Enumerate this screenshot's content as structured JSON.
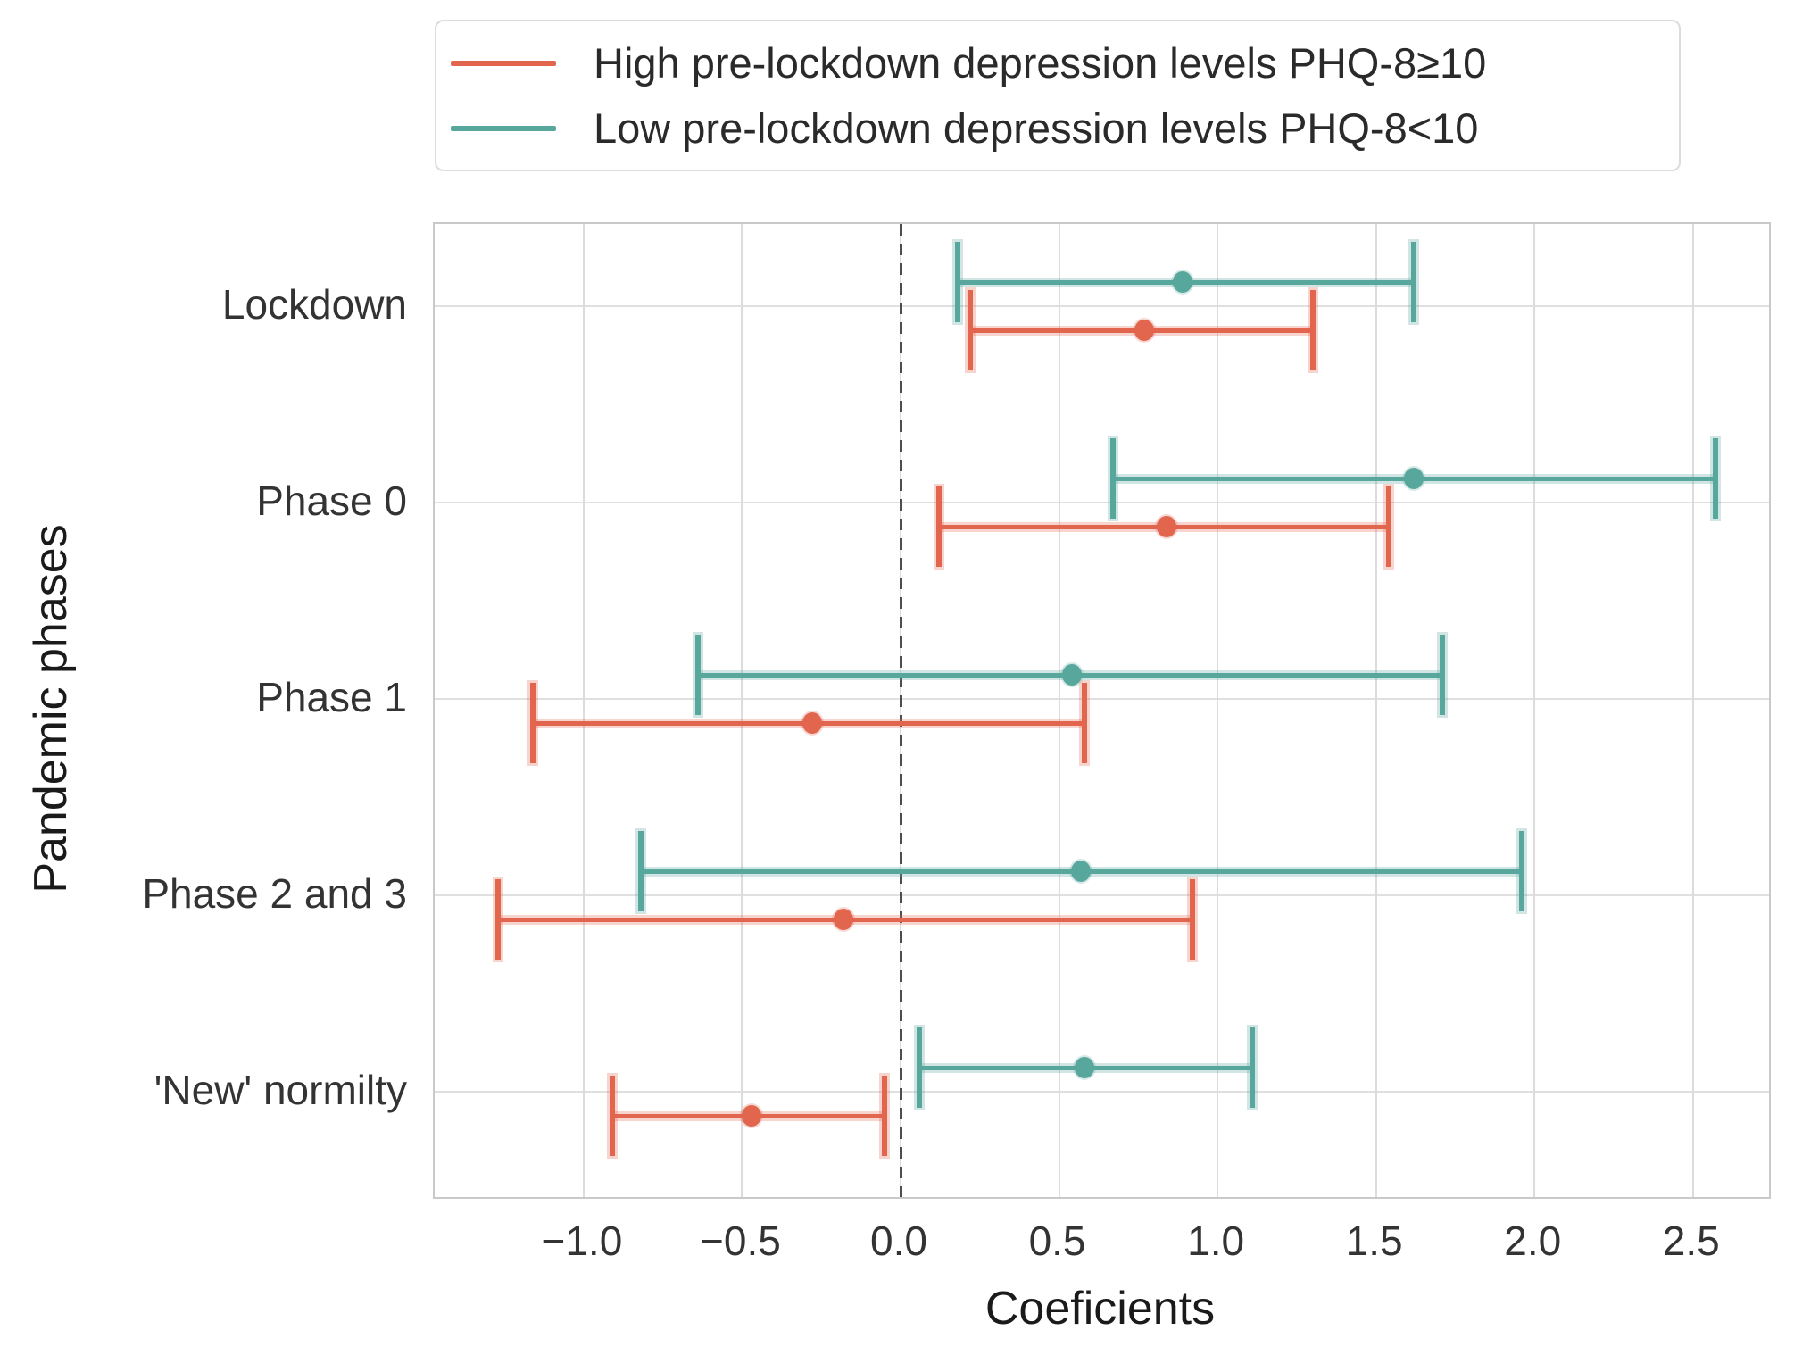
{
  "legend": {
    "items": [
      {
        "label": "High pre-lockdown depression levels PHQ-8≥10",
        "color": "#e2654e"
      },
      {
        "label": "Low pre-lockdown depression levels PHQ-8<10",
        "color": "#58a79d"
      }
    ]
  },
  "chart_data": {
    "type": "scatter",
    "subtype": "point-estimates-with-95ci-error-bars (dot-and-whisker, horizontal)",
    "title": "",
    "xlabel": "Coeficients",
    "ylabel": "Pandemic phases",
    "categories": [
      "Lockdown",
      "Phase 0",
      "Phase 1",
      "Phase 2 and 3",
      "'New' normilty"
    ],
    "xlim": [
      -1.47,
      2.74
    ],
    "x_ticks": [
      -1.0,
      -0.5,
      0.0,
      0.5,
      1.0,
      1.5,
      2.0,
      2.5
    ],
    "x_tick_labels": [
      "−1.0",
      "−0.5",
      "0.0",
      "0.5",
      "1.0",
      "1.5",
      "2.0",
      "2.5"
    ],
    "grid": true,
    "legend_position": "top, above plot, framed box",
    "zero_line": {
      "x": 0.0,
      "style": "dashed",
      "color": "#4d4d4d"
    },
    "colors": {
      "grid": "#dcdcdc",
      "frame": "#c9c9c9",
      "background": "#ffffff"
    },
    "series": [
      {
        "name": "High pre-lockdown depression levels PHQ-8≥10",
        "color": "#e2654e",
        "points": [
          {
            "category": "Lockdown",
            "value": 0.77,
            "ci_low": 0.22,
            "ci_high": 1.3
          },
          {
            "category": "Phase 0",
            "value": 0.84,
            "ci_low": 0.12,
            "ci_high": 1.54
          },
          {
            "category": "Phase 1",
            "value": -0.28,
            "ci_low": -1.16,
            "ci_high": 0.58
          },
          {
            "category": "Phase 2 and 3",
            "value": -0.18,
            "ci_low": -1.27,
            "ci_high": 0.92
          },
          {
            "category": "'New' normilty",
            "value": -0.47,
            "ci_low": -0.91,
            "ci_high": -0.05
          }
        ]
      },
      {
        "name": "Low pre-lockdown depression levels PHQ-8<10",
        "color": "#58a79d",
        "points": [
          {
            "category": "Lockdown",
            "value": 0.89,
            "ci_low": 0.18,
            "ci_high": 1.62
          },
          {
            "category": "Phase 0",
            "value": 1.62,
            "ci_low": 0.67,
            "ci_high": 2.57
          },
          {
            "category": "Phase 1",
            "value": 0.54,
            "ci_low": -0.64,
            "ci_high": 1.71
          },
          {
            "category": "Phase 2 and 3",
            "value": 0.57,
            "ci_low": -0.82,
            "ci_high": 1.96
          },
          {
            "category": "'New' normilty",
            "value": 0.58,
            "ci_low": 0.06,
            "ci_high": 1.11
          }
        ]
      }
    ]
  }
}
